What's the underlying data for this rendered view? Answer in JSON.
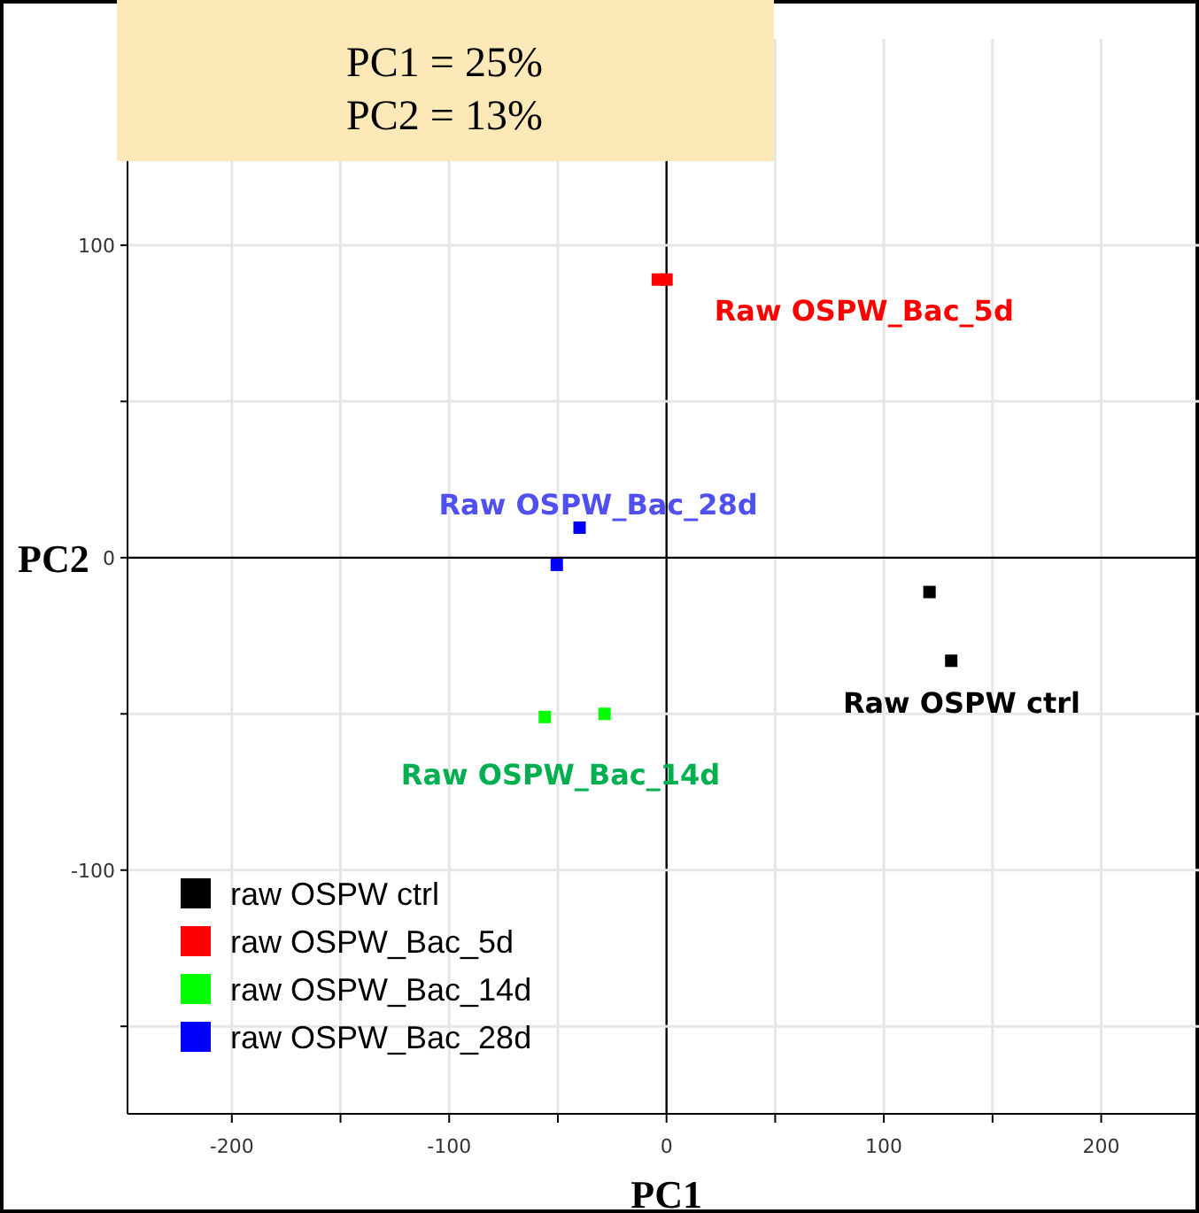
{
  "chart_data": {
    "type": "scatter",
    "xlabel": "PC1",
    "ylabel": "PC2",
    "xlim": [
      -248,
      245
    ],
    "ylim": [
      -178,
      166
    ],
    "xticks": [
      -200,
      {
        "value": -150,
        "label": null
      },
      -100,
      {
        "value": -50,
        "label": null
      },
      0,
      {
        "value": 50,
        "label": null
      },
      100,
      {
        "value": 150,
        "label": null
      },
      200
    ],
    "yticks": [
      {
        "value": -150,
        "label": null
      },
      -100,
      {
        "value": -50,
        "label": null
      },
      0,
      {
        "value": 50,
        "label": null
      },
      100
    ],
    "grid": true,
    "marker": "square",
    "legend": "bottom left",
    "series": [
      {
        "name": "raw OSPW ctrl",
        "color": "#000000",
        "x": [
          121,
          131
        ],
        "values": [
          -11,
          -33
        ]
      },
      {
        "name": "raw OSPW_Bac_5d",
        "color": "#ff0000",
        "x": [
          -4,
          0
        ],
        "values": [
          89,
          89
        ]
      },
      {
        "name": "raw OSPW_Bac_14d",
        "color": "#00ff00",
        "x": [
          -56,
          -28.5
        ],
        "values": [
          -51,
          -50
        ]
      },
      {
        "name": "raw OSPW_Bac_28d",
        "color": "#0000ff",
        "x": [
          -40,
          -50.5
        ],
        "values": [
          9.6,
          -2.3
        ]
      }
    ],
    "annotations": [
      "PC1 = 25%",
      "PC2 = 13%",
      "Raw OSPW ctrl",
      "Raw OSPW_Bac_5d",
      "Raw OSPW_Bac_14d",
      "Raw OSPW_Bac_28d"
    ]
  }
}
